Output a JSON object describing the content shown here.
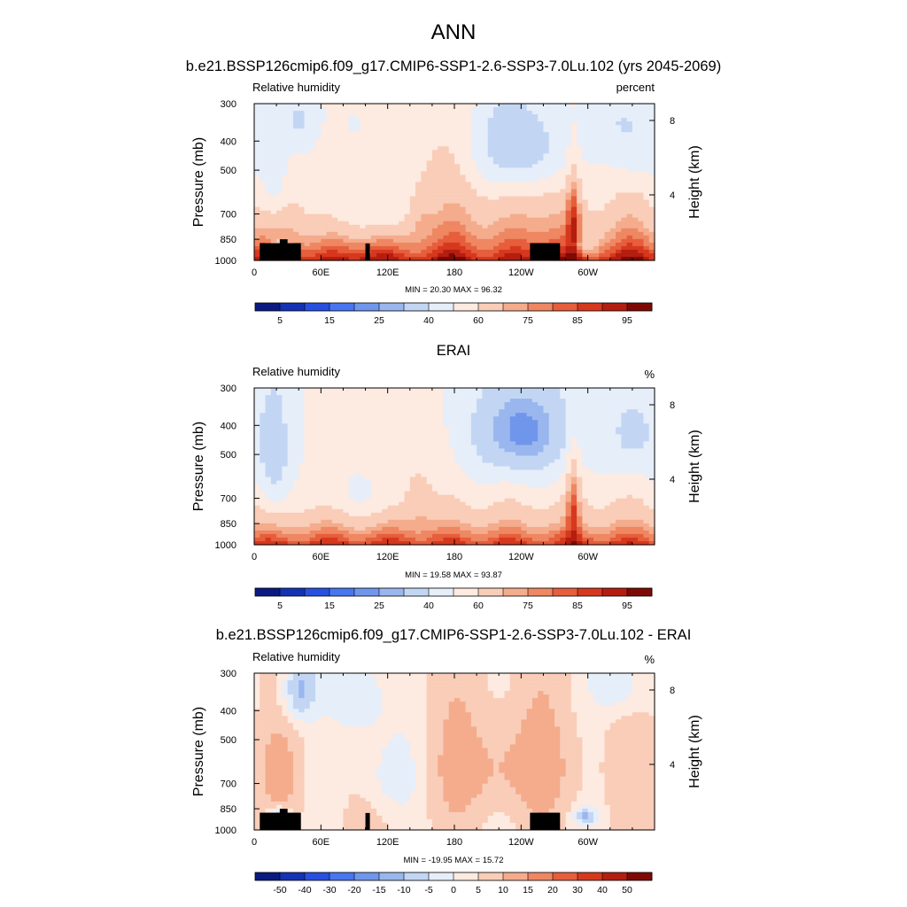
{
  "figure": {
    "season": "ANN",
    "colors": {
      "abs_palette": [
        "#0a1a80",
        "#1432b4",
        "#2850e0",
        "#4876f0",
        "#7096ec",
        "#9ab6ee",
        "#c2d6f4",
        "#e6eefa",
        "#fdeae0",
        "#f9cdb8",
        "#f4ac8c",
        "#ee8762",
        "#e65e3c",
        "#d6381e",
        "#b41e10",
        "#7e0a06"
      ],
      "diff_palette": [
        "#0a1a80",
        "#1432b4",
        "#2850e0",
        "#4876f0",
        "#7096ec",
        "#9ab6ee",
        "#c2d6f4",
        "#e6eefa",
        "#fdeae0",
        "#f9cdb8",
        "#f4ac8c",
        "#ee8762",
        "#e65e3c",
        "#d6381e",
        "#b41e10",
        "#7e0a06"
      ],
      "terrain": "#000000"
    }
  },
  "chart_data": [
    {
      "type": "heatmap",
      "panel_title": "b.e21.BSSP126cmip6.f09_g17.CMIP6-SSP1-2.6-SSP3-7.0Lu.102 (yrs 2045-2069)",
      "left_label": "Relative humidity",
      "right_label": "percent",
      "ylabel": "Pressure (mb)",
      "ylabel_right": "Height (km)",
      "x_ticks": [
        "0",
        "60E",
        "120E",
        "180",
        "120W",
        "60W"
      ],
      "x_tick_values": [
        0,
        60,
        120,
        180,
        240,
        300
      ],
      "xlim": [
        0,
        360
      ],
      "y_ticks": [
        "300",
        "400",
        "500",
        "700",
        "850",
        "1000"
      ],
      "y_tick_values": [
        300,
        400,
        500,
        700,
        850,
        1000
      ],
      "ylim": [
        1000,
        300
      ],
      "y_scale": "log",
      "height_ticks": [
        "8",
        "4"
      ],
      "height_tick_values": [
        8,
        4
      ],
      "stats": "MIN =  20.30  MAX =  96.32",
      "colorbar_labels": [
        "5",
        "15",
        "25",
        "40",
        "60",
        "75",
        "85",
        "95"
      ],
      "field": "model"
    },
    {
      "type": "heatmap",
      "panel_title": "ERAI",
      "left_label": "Relative humidity",
      "right_label": "%",
      "ylabel": "Pressure (mb)",
      "ylabel_right": "Height (km)",
      "x_ticks": [
        "0",
        "60E",
        "120E",
        "180",
        "120W",
        "60W"
      ],
      "x_tick_values": [
        0,
        60,
        120,
        180,
        240,
        300
      ],
      "xlim": [
        0,
        360
      ],
      "y_ticks": [
        "300",
        "400",
        "500",
        "700",
        "850",
        "1000"
      ],
      "y_tick_values": [
        300,
        400,
        500,
        700,
        850,
        1000
      ],
      "ylim": [
        1000,
        300
      ],
      "y_scale": "log",
      "height_ticks": [
        "8",
        "4"
      ],
      "height_tick_values": [
        8,
        4
      ],
      "stats": "MIN =  19.58  MAX =  93.87",
      "colorbar_labels": [
        "5",
        "15",
        "25",
        "40",
        "60",
        "75",
        "85",
        "95"
      ],
      "field": "obs"
    },
    {
      "type": "heatmap",
      "panel_title": "b.e21.BSSP126cmip6.f09_g17.CMIP6-SSP1-2.6-SSP3-7.0Lu.102 - ERAI",
      "left_label": "Relative humidity",
      "right_label": "%",
      "ylabel": "Pressure (mb)",
      "ylabel_right": "Height (km)",
      "x_ticks": [
        "0",
        "60E",
        "120E",
        "180",
        "120W",
        "60W"
      ],
      "x_tick_values": [
        0,
        60,
        120,
        180,
        240,
        300
      ],
      "xlim": [
        0,
        360
      ],
      "y_ticks": [
        "300",
        "400",
        "500",
        "700",
        "850",
        "1000"
      ],
      "y_tick_values": [
        300,
        400,
        500,
        700,
        850,
        1000
      ],
      "ylim": [
        1000,
        300
      ],
      "y_scale": "log",
      "height_ticks": [
        "8",
        "4"
      ],
      "height_tick_values": [
        8,
        4
      ],
      "stats": "MIN = -19.95  MAX =  15.72",
      "colorbar_labels": [
        "-50",
        "-40",
        "-30",
        "-20",
        "-15",
        "-10",
        "-5",
        "0",
        "5",
        "10",
        "15",
        "20",
        "30",
        "40",
        "50"
      ],
      "field": "diff"
    }
  ]
}
